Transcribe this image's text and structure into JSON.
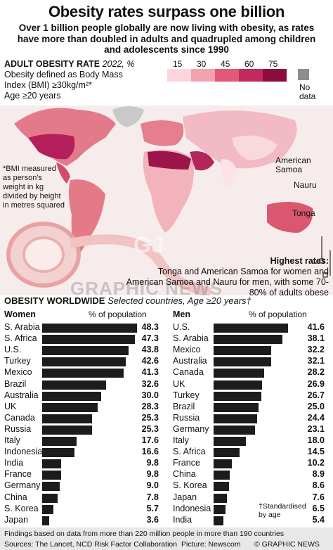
{
  "title": "Obesity rates surpass one billion",
  "subtitle": "Over 1 billion people globally are now living with obesity, as rates have more than doubled in adults and quadrupled among children and adolescents since 1990",
  "map": {
    "legend_title": "ADULT OBESITY RATE",
    "legend_meta": "2022, %",
    "definition_1": "Obesity defined as Body Mass",
    "definition_2": "Index (BMI) ≥30kg/m²*",
    "definition_3": "Age ≥20 years",
    "scale_ticks": [
      "15",
      "30",
      "45",
      "60",
      "75"
    ],
    "scale_colors": [
      "#fbd6dc",
      "#f1a3b0",
      "#e25a78",
      "#c02a5c",
      "#8c0e3e"
    ],
    "no_data": "No data",
    "no_data_color": "#8e8e8e",
    "bmi_note": "*BMI measured as person's weight in kg divided by height in metres squared",
    "islands": [
      "American Samoa",
      "Nauru",
      "Tonga"
    ]
  },
  "highest": {
    "title": "Highest rates:",
    "text": "Tonga and American Samoa for women and American Samoa and Nauru for men, with some 70-80% of adults obese"
  },
  "section": {
    "title": "OBESITY WORLDWIDE",
    "meta": "Selected countries, Age ≥20 years†",
    "standardised": "†Standardised by age"
  },
  "footer": {
    "findings": "Findings based on data from more than 220 million people in more than 190 countries",
    "sources": "Sources: The Lancet, NCD Risk Factor Collaboration",
    "picture": "Picture: Newscom",
    "copyright": "© GRAPHIC NEWS"
  },
  "chart_data": [
    {
      "type": "bar",
      "title": "Women",
      "ylabel": "% of population",
      "categories": [
        "S. Arabia",
        "S. Africa",
        "U.S.",
        "Turkey",
        "Mexico",
        "Brazil",
        "Australia",
        "UK",
        "Canada",
        "Russia",
        "Italy",
        "Indonesia",
        "India",
        "France",
        "Germany",
        "China",
        "S. Korea",
        "Japan"
      ],
      "values": [
        48.3,
        47.3,
        43.8,
        42.6,
        41.3,
        32.6,
        30.0,
        28.3,
        25.3,
        25.3,
        17.6,
        16.6,
        9.8,
        9.8,
        9.0,
        7.8,
        5.7,
        3.6
      ],
      "labels": [
        "48.3",
        "47.3",
        "43.8",
        "42.6",
        "41.3",
        "32.6",
        "30.0",
        "28.3",
        "25.3",
        "25.3",
        "17.6",
        "16.6",
        "9.8",
        "9.8",
        "9.0",
        "7.8",
        "5.7",
        "3.6"
      ],
      "color": "#1c1c1c"
    },
    {
      "type": "bar",
      "title": "Men",
      "ylabel": "% of population",
      "categories": [
        "U.S.",
        "S. Arabia",
        "Mexico",
        "Australia",
        "Canada",
        "UK",
        "Turkey",
        "Brazil",
        "Russia",
        "Germany",
        "Italy",
        "S. Africa",
        "France",
        "China",
        "S. Korea",
        "Japan",
        "Indonesia",
        "India"
      ],
      "values": [
        41.6,
        38.1,
        32.2,
        32.1,
        28.2,
        26.9,
        26.7,
        25.0,
        24.4,
        23.1,
        18.0,
        14.5,
        10.2,
        8.9,
        8.6,
        7.6,
        6.5,
        5.4
      ],
      "labels": [
        "41.6",
        "38.1",
        "32.2",
        "32.1",
        "28.2",
        "26.9",
        "26.7",
        "25.0",
        "24.4",
        "23.1",
        "18.0",
        "14.5",
        "10.2",
        "8.9",
        "8.6",
        "7.6",
        "6.5",
        "5.4"
      ],
      "color": "#1c1c1c"
    }
  ]
}
